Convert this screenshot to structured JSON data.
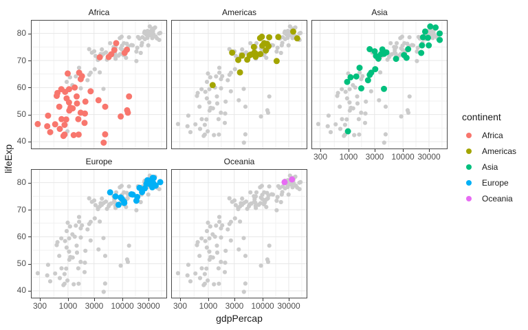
{
  "chart_data": {
    "type": "scatter",
    "title": "",
    "xlabel": "gdpPercap",
    "ylabel": "lifeExp",
    "legend_title": "continent",
    "legend_position": "right",
    "x_scale": "log10",
    "grid": true,
    "x_ticks": [
      300,
      1000,
      3000,
      10000,
      30000
    ],
    "y_ticks": [
      40,
      50,
      60,
      70,
      80
    ],
    "x_range": [
      278,
      49357
    ],
    "y_range": [
      39.6,
      82.6
    ],
    "background_points_color": "#CBCBCB",
    "facet_layout": [
      [
        "Africa",
        "Americas",
        "Asia"
      ],
      [
        "Europe",
        "Oceania"
      ]
    ],
    "series": [
      {
        "name": "Africa",
        "color": "#F8766D",
        "points": [
          [
            6223,
            72.3
          ],
          [
            4797,
            42.7
          ],
          [
            1441,
            56.7
          ],
          [
            12570,
            50.7
          ],
          [
            1217,
            52.3
          ],
          [
            430,
            49.6
          ],
          [
            2042,
            50.4
          ],
          [
            706,
            44.7
          ],
          [
            1704,
            50.7
          ],
          [
            986,
            65.2
          ],
          [
            278,
            46.5
          ],
          [
            3633,
            55.3
          ],
          [
            1545,
            48.3
          ],
          [
            2082,
            54.8
          ],
          [
            5581,
            71.3
          ],
          [
            12154,
            51.6
          ],
          [
            641,
            58.0
          ],
          [
            691,
            52.9
          ],
          [
            13206,
            56.7
          ],
          [
            753,
            59.4
          ],
          [
            1328,
            60.0
          ],
          [
            943,
            56.0
          ],
          [
            579,
            46.4
          ],
          [
            1463,
            54.1
          ],
          [
            1569,
            42.6
          ],
          [
            415,
            45.7
          ],
          [
            12057,
            74.0
          ],
          [
            1045,
            59.4
          ],
          [
            759,
            48.3
          ],
          [
            1043,
            54.5
          ],
          [
            1803,
            64.2
          ],
          [
            10957,
            72.8
          ],
          [
            3820,
            71.2
          ],
          [
            824,
            42.1
          ],
          [
            4811,
            52.9
          ],
          [
            620,
            56.9
          ],
          [
            2014,
            46.9
          ],
          [
            7670,
            76.4
          ],
          [
            863,
            46.2
          ],
          [
            1598,
            65.5
          ],
          [
            1712,
            63.1
          ],
          [
            863,
            42.6
          ],
          [
            926,
            48.2
          ],
          [
            9270,
            49.3
          ],
          [
            2602,
            58.6
          ],
          [
            4513,
            39.6
          ],
          [
            1107,
            52.5
          ],
          [
            883,
            58.4
          ],
          [
            7093,
            73.9
          ],
          [
            1056,
            51.5
          ],
          [
            1271,
            42.4
          ],
          [
            470,
            43.5
          ]
        ]
      },
      {
        "name": "Americas",
        "color": "#A3A500",
        "points": [
          [
            12779,
            75.3
          ],
          [
            3822,
            65.6
          ],
          [
            9066,
            72.4
          ],
          [
            36319,
            80.7
          ],
          [
            13172,
            78.6
          ],
          [
            7007,
            72.9
          ],
          [
            9645,
            78.8
          ],
          [
            8948,
            78.3
          ],
          [
            6025,
            72.2
          ],
          [
            6873,
            75.0
          ],
          [
            5728,
            71.9
          ],
          [
            5186,
            70.3
          ],
          [
            1202,
            60.9
          ],
          [
            3548,
            70.2
          ],
          [
            7321,
            72.6
          ],
          [
            11978,
            76.2
          ],
          [
            2749,
            72.9
          ],
          [
            9809,
            75.5
          ],
          [
            4173,
            71.8
          ],
          [
            7409,
            71.4
          ],
          [
            19329,
            78.7
          ],
          [
            18009,
            69.8
          ],
          [
            42952,
            78.2
          ],
          [
            10611,
            76.4
          ],
          [
            11416,
            73.7
          ]
        ]
      },
      {
        "name": "Asia",
        "color": "#00BF7D",
        "points": [
          [
            975,
            43.8
          ],
          [
            29796,
            75.6
          ],
          [
            1391,
            64.1
          ],
          [
            1714,
            59.7
          ],
          [
            4959,
            73.0
          ],
          [
            39725,
            82.2
          ],
          [
            2452,
            64.7
          ],
          [
            3541,
            70.7
          ],
          [
            11606,
            71.0
          ],
          [
            4471,
            59.5
          ],
          [
            25523,
            80.7
          ],
          [
            31656,
            82.6
          ],
          [
            4519,
            72.5
          ],
          [
            1593,
            67.3
          ],
          [
            23348,
            78.6
          ],
          [
            47307,
            77.6
          ],
          [
            10461,
            72.0
          ],
          [
            12452,
            74.2
          ],
          [
            3096,
            66.8
          ],
          [
            944,
            62.1
          ],
          [
            1091,
            63.8
          ],
          [
            22316,
            75.6
          ],
          [
            2606,
            65.5
          ],
          [
            3190,
            71.7
          ],
          [
            21655,
            72.8
          ],
          [
            47143,
            80.0
          ],
          [
            3970,
            72.4
          ],
          [
            4185,
            74.1
          ],
          [
            28718,
            78.4
          ],
          [
            7458,
            70.6
          ],
          [
            2442,
            74.2
          ],
          [
            3025,
            73.4
          ],
          [
            2281,
            62.7
          ]
        ]
      },
      {
        "name": "Europe",
        "color": "#00B0F6",
        "points": [
          [
            5937,
            76.4
          ],
          [
            36126,
            79.8
          ],
          [
            33693,
            79.4
          ],
          [
            7446,
            74.9
          ],
          [
            10681,
            73.0
          ],
          [
            14619,
            75.7
          ],
          [
            22833,
            76.5
          ],
          [
            35278,
            78.3
          ],
          [
            33207,
            79.3
          ],
          [
            30470,
            80.7
          ],
          [
            32170,
            79.4
          ],
          [
            27538,
            79.5
          ],
          [
            18009,
            73.3
          ],
          [
            36181,
            81.8
          ],
          [
            40676,
            78.9
          ],
          [
            28570,
            80.5
          ],
          [
            9254,
            74.5
          ],
          [
            36798,
            79.8
          ],
          [
            49357,
            80.2
          ],
          [
            15390,
            75.6
          ],
          [
            20510,
            78.1
          ],
          [
            10808,
            72.5
          ],
          [
            9787,
            74.0
          ],
          [
            18678,
            74.7
          ],
          [
            25768,
            77.9
          ],
          [
            28821,
            80.9
          ],
          [
            33860,
            80.9
          ],
          [
            37506,
            81.7
          ],
          [
            8458,
            71.8
          ],
          [
            33203,
            79.4
          ]
        ]
      },
      {
        "name": "Oceania",
        "color": "#E76BF3",
        "points": [
          [
            34435,
            81.2
          ],
          [
            25185,
            80.2
          ]
        ]
      }
    ]
  }
}
